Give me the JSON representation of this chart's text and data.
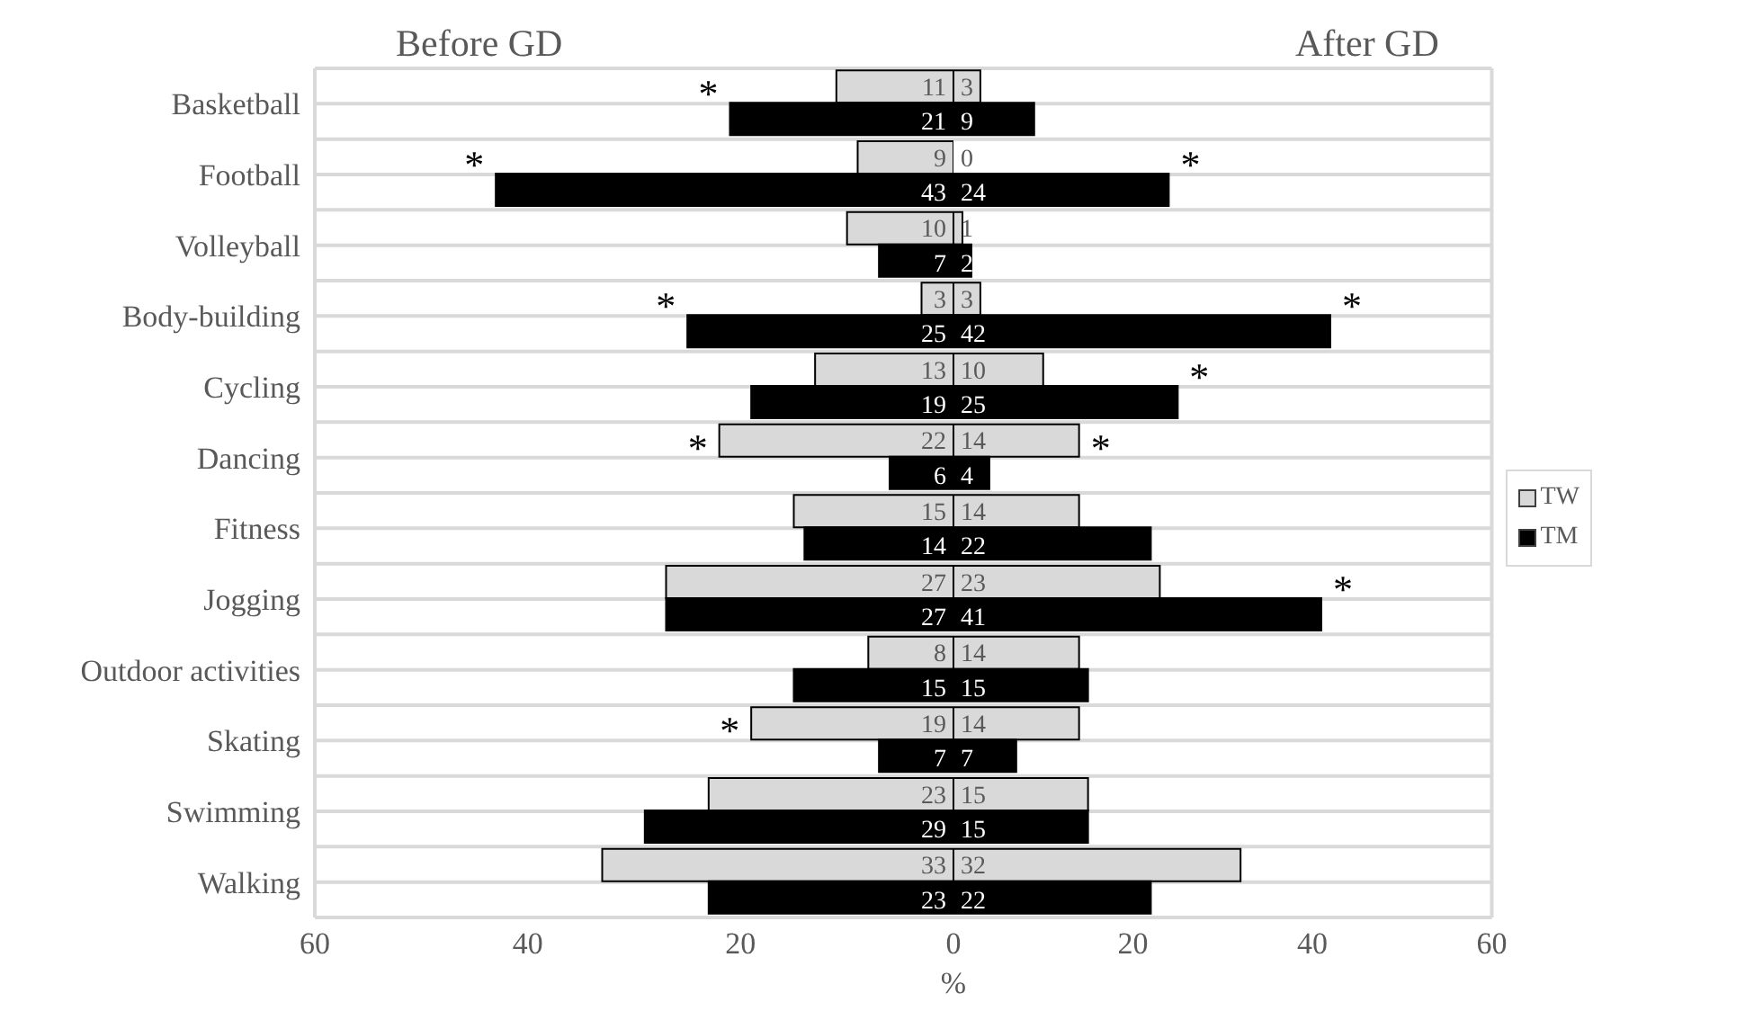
{
  "chart_data": [
    {
      "type": "bar",
      "orientation": "horizontal",
      "title": "Before GD",
      "categories": [
        "Basketball",
        "Football",
        "Volleyball",
        "Body-building",
        "Cycling",
        "Dancing",
        "Fitness",
        "Jogging",
        "Outdoor activities",
        "Skating",
        "Swimming",
        "Walking"
      ],
      "series": [
        {
          "color": "#d9d9d9",
          "values": [
            11,
            9,
            10,
            3,
            13,
            22,
            15,
            27,
            8,
            19,
            23,
            33
          ]
        },
        {
          "color": "#000000",
          "values": [
            21,
            43,
            7,
            25,
            19,
            6,
            14,
            27,
            15,
            7,
            29,
            23
          ]
        }
      ],
      "xlim": [
        60,
        0
      ],
      "xticks": [
        60,
        40,
        20,
        0
      ],
      "xlabel": "%",
      "grid": "y",
      "data_labels": true,
      "annotations": [
        {
          "text": "*",
          "x": 21,
          "y": "Basketball"
        },
        {
          "text": "*",
          "x": 43,
          "y": "Football"
        },
        {
          "text": "*",
          "x": 25,
          "y": "Body-building"
        },
        {
          "text": "*",
          "x": 22,
          "y": "Dancing"
        },
        {
          "text": "*",
          "x": 19,
          "y": "Skating"
        }
      ]
    },
    {
      "type": "bar",
      "orientation": "horizontal",
      "title": "After GD",
      "categories": [
        "Basketball",
        "Football",
        "Volleyball",
        "Body-building",
        "Cycling",
        "Dancing",
        "Fitness",
        "Jogging",
        "Outdoor activities",
        "Skating",
        "Swimming",
        "Walking"
      ],
      "series": [
        {
          "name": "TW",
          "color": "#d9d9d9",
          "values": [
            3,
            0,
            1,
            3,
            10,
            14,
            14,
            23,
            14,
            14,
            15,
            32
          ]
        },
        {
          "name": "TM",
          "color": "#000000",
          "values": [
            9,
            24,
            2,
            42,
            25,
            4,
            22,
            41,
            15,
            7,
            15,
            22
          ]
        }
      ],
      "xlim": [
        0,
        60
      ],
      "xticks": [
        20,
        40,
        60
      ],
      "grid": "y",
      "data_labels": true,
      "legend": "right",
      "tick_labels": "x",
      "annotations": [
        {
          "text": "*",
          "x": 24,
          "y": "Football"
        },
        {
          "text": "*",
          "x": 42,
          "y": "Body-building"
        },
        {
          "text": "*",
          "x": 25,
          "y": "Cycling"
        },
        {
          "text": "*",
          "x": 14,
          "y": "Dancing"
        },
        {
          "text": "*",
          "x": 41,
          "y": "Jogging"
        }
      ]
    }
  ]
}
